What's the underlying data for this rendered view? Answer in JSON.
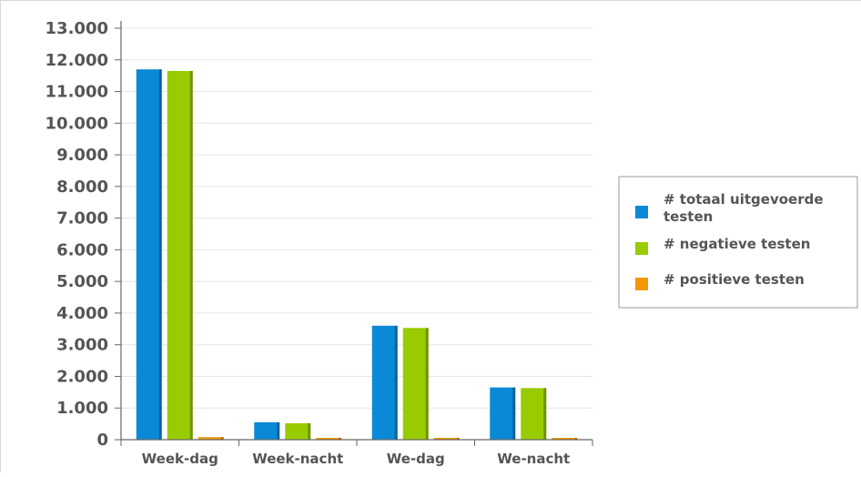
{
  "chart_data": {
    "type": "bar",
    "categories": [
      "Week-dag",
      "Week-nacht",
      "We-dag",
      "We-nacht"
    ],
    "series": [
      {
        "name": "# totaal uitgevoerde testen",
        "color": "#0a8ad6",
        "values": [
          11700,
          550,
          3600,
          1650
        ]
      },
      {
        "name": "# negatieve testen",
        "color": "#99cc00",
        "values": [
          11650,
          520,
          3530,
          1630
        ]
      },
      {
        "name": "# positieve testen",
        "color": "#f39800",
        "values": [
          80,
          15,
          20,
          10
        ]
      }
    ],
    "ylim": [
      0,
      13000
    ],
    "yticks": [
      {
        "value": 0,
        "label": "0"
      },
      {
        "value": 1000,
        "label": "1.000"
      },
      {
        "value": 2000,
        "label": "2.000"
      },
      {
        "value": 3000,
        "label": "3.000"
      },
      {
        "value": 4000,
        "label": "4.000"
      },
      {
        "value": 5000,
        "label": "5.000"
      },
      {
        "value": 6000,
        "label": "6.000"
      },
      {
        "value": 7000,
        "label": "7.000"
      },
      {
        "value": 8000,
        "label": "8.000"
      },
      {
        "value": 9000,
        "label": "9.000"
      },
      {
        "value": 10000,
        "label": "10.000"
      },
      {
        "value": 11000,
        "label": "11.000"
      },
      {
        "value": 12000,
        "label": "12.000"
      },
      {
        "value": 13000,
        "label": "13.000"
      }
    ],
    "grid": true,
    "legend": {
      "position": "right",
      "entries": [
        {
          "lines": [
            "# totaal uitgevoerde",
            "testen"
          ],
          "color": "#0a8ad6"
        },
        {
          "lines": [
            "# negatieve testen"
          ],
          "color": "#99cc00"
        },
        {
          "lines": [
            "# positieve testen"
          ],
          "color": "#f39800"
        }
      ]
    }
  }
}
